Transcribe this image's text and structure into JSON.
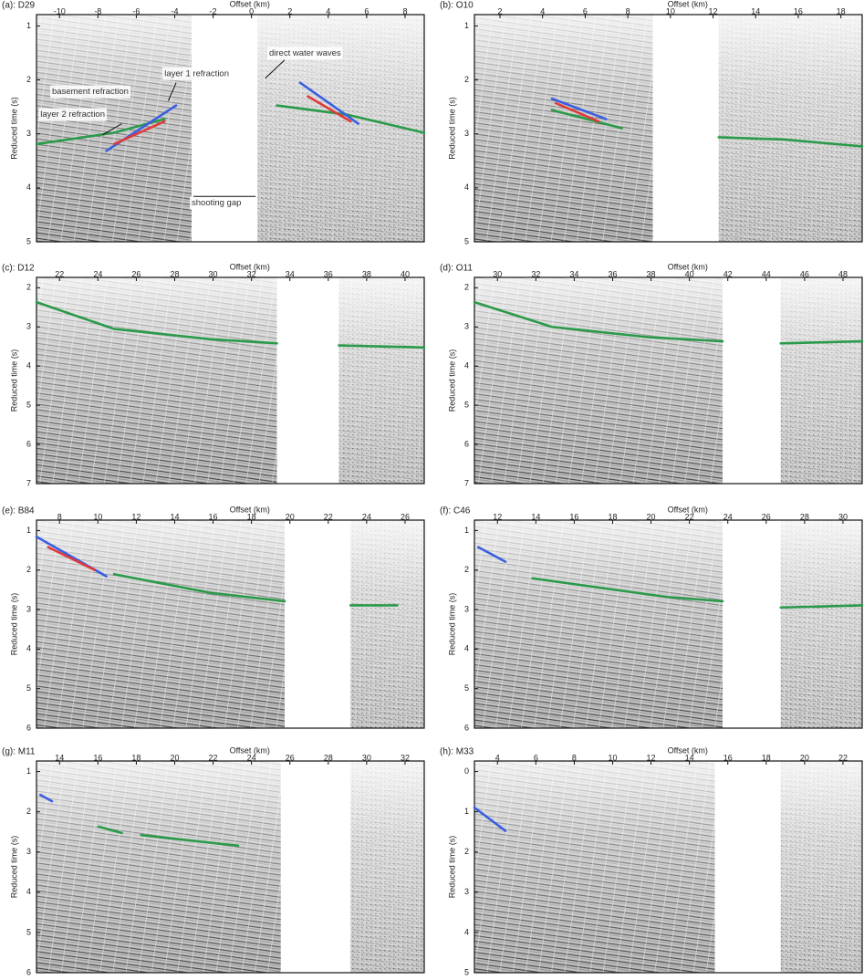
{
  "panels": [
    {
      "label": "(a): D29",
      "x_label": "Offset (km)",
      "y_label": "Reduced time (s)",
      "x_ticks": [
        "-10",
        "-8",
        "-6",
        "-4",
        "-2",
        "0",
        "2",
        "4",
        "6",
        "8"
      ],
      "y_ticks": [
        "1",
        "2",
        "3",
        "4",
        "5"
      ],
      "annotations": [
        "layer 1 refraction",
        "basement refraction",
        "layer 2 refraction",
        "direct water waves",
        "shooting gap"
      ]
    },
    {
      "label": "(b): O10",
      "x_label": "Offset (km)",
      "y_label": "Reduced time (s)",
      "x_ticks": [
        "2",
        "4",
        "6",
        "8",
        "10",
        "12",
        "14",
        "16",
        "18"
      ],
      "y_ticks": [
        "1",
        "2",
        "3",
        "4",
        "5"
      ]
    },
    {
      "label": "(c): D12",
      "x_label": "Offset (km)",
      "y_label": "Reduced time (s)",
      "x_ticks": [
        "22",
        "24",
        "26",
        "28",
        "30",
        "32",
        "34",
        "36",
        "38",
        "40"
      ],
      "y_ticks": [
        "2",
        "3",
        "4",
        "5",
        "6",
        "7"
      ]
    },
    {
      "label": "(d): O11",
      "x_label": "Offset (km)",
      "y_label": "Reduced time (s)",
      "x_ticks": [
        "30",
        "32",
        "34",
        "36",
        "38",
        "40",
        "42",
        "44",
        "46",
        "48"
      ],
      "y_ticks": [
        "2",
        "3",
        "4",
        "5",
        "6",
        "7"
      ]
    },
    {
      "label": "(e): B84",
      "x_label": "Offset (km)",
      "y_label": "Reduced time (s)",
      "x_ticks": [
        "8",
        "10",
        "12",
        "14",
        "16",
        "18",
        "20",
        "22",
        "24",
        "26"
      ],
      "y_ticks": [
        "1",
        "2",
        "3",
        "4",
        "5",
        "6"
      ]
    },
    {
      "label": "(f): C46",
      "x_label": "Offset (km)",
      "y_label": "Reduced time (s)",
      "x_ticks": [
        "12",
        "14",
        "16",
        "18",
        "20",
        "22",
        "24",
        "26",
        "28",
        "30"
      ],
      "y_ticks": [
        "1",
        "2",
        "3",
        "4",
        "5",
        "6"
      ]
    },
    {
      "label": "(g): M11",
      "x_label": "Offset (km)",
      "y_label": "Reduced time (s)",
      "x_ticks": [
        "14",
        "16",
        "18",
        "20",
        "22",
        "24",
        "26",
        "28",
        "30",
        "32"
      ],
      "y_ticks": [
        "1",
        "2",
        "3",
        "4",
        "5",
        "6"
      ]
    },
    {
      "label": "(h): M33",
      "x_label": "Offset (km)",
      "y_label": "Reduced time (s)",
      "x_ticks": [
        "4",
        "6",
        "8",
        "10",
        "12",
        "14",
        "16",
        "18",
        "20",
        "22"
      ],
      "y_ticks": [
        "0",
        "1",
        "2",
        "3",
        "4",
        "5"
      ]
    }
  ]
}
